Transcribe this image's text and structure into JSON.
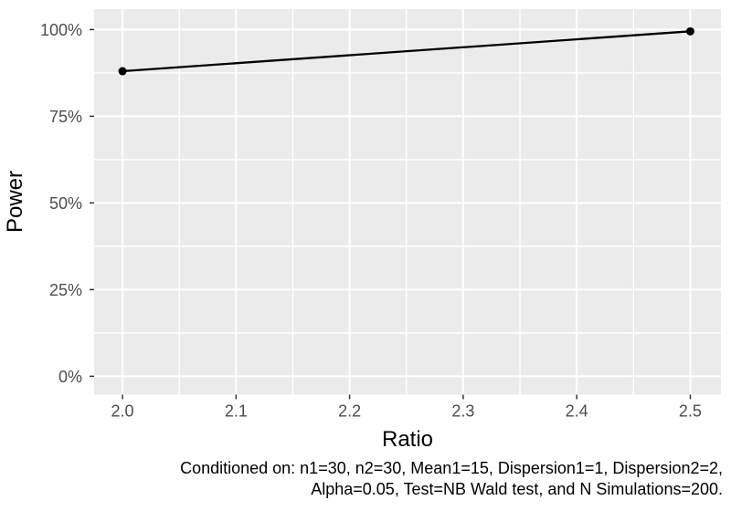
{
  "chart_data": {
    "type": "line",
    "title": "",
    "xlabel": "Ratio",
    "ylabel": "Power",
    "series": [
      {
        "name": "Power",
        "x": [
          2.0,
          2.5
        ],
        "y_percent": [
          88,
          99.5
        ]
      }
    ],
    "x_ticks": {
      "values": [
        2.0,
        2.1,
        2.2,
        2.3,
        2.4,
        2.5
      ],
      "labels": [
        "2.0",
        "2.1",
        "2.2",
        "2.3",
        "2.4",
        "2.5"
      ]
    },
    "y_ticks": {
      "values": [
        0,
        25,
        50,
        75,
        100
      ],
      "labels": [
        "0%",
        "25%",
        "50%",
        "75%",
        "100%"
      ]
    },
    "x_minor": [
      2.05,
      2.15,
      2.25,
      2.35,
      2.45
    ],
    "y_minor_percent": [
      12.5,
      37.5,
      62.5,
      87.5
    ],
    "xlim": [
      1.975,
      2.527
    ],
    "ylim_percent": [
      -5.3,
      105.9
    ],
    "grid": "on",
    "legend": "none",
    "styles": {
      "panel_bg": "#EBEBEB",
      "grid_color": "#FFFFFF",
      "line_color": "#000000",
      "point_color": "#000000",
      "tick_color": "#333333",
      "tick_label_color": "#4D4D4D",
      "axis_title_color": "#000000",
      "caption_color": "#000000"
    },
    "caption_lines": [
      "Conditioned on: n1=30, n2=30, Mean1=15, Dispersion1=1, Dispersion2=2,",
      "Alpha=0.05, Test=NB Wald test, and N Simulations=200."
    ]
  }
}
